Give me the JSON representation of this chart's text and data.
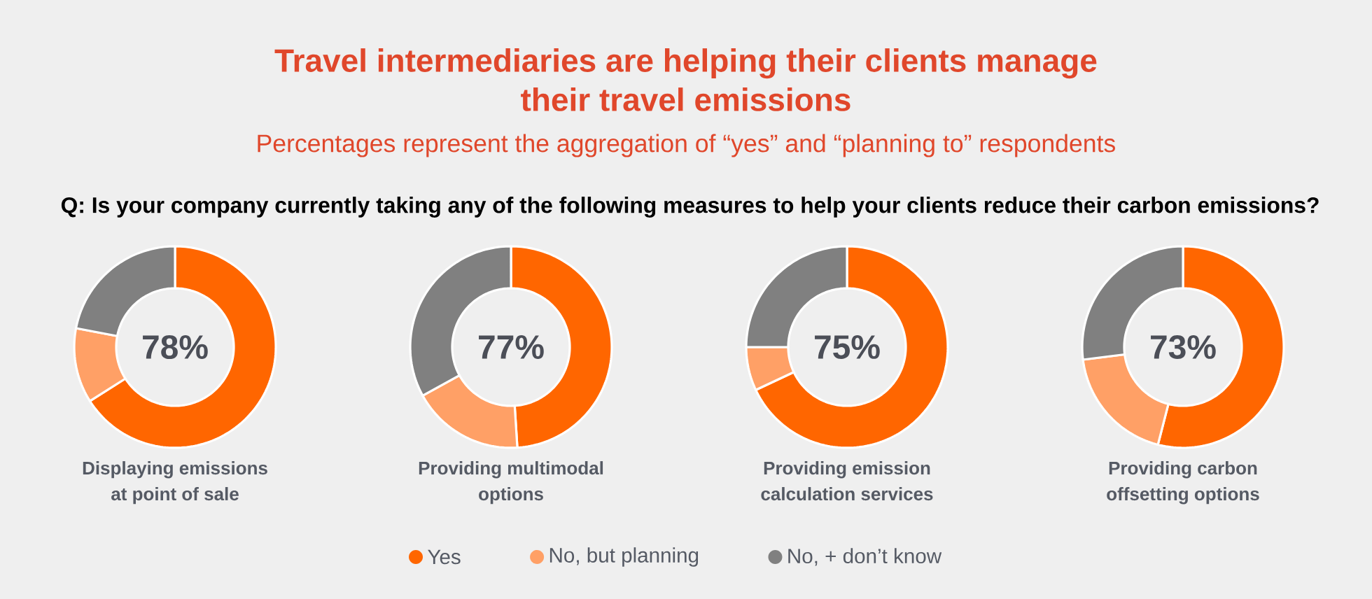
{
  "chart_data": {
    "type": "donut",
    "title": "Travel intermediaries are helping their clients manage their travel emissions",
    "subtitle": "Percentages represent the aggregation of “yes” and “planning to” respondents",
    "annotations": [
      "Q: Is your company currently taking any of the following measures to help your clients reduce their carbon emissions?",
      "78%",
      "77%",
      "75%",
      "73%"
    ],
    "categories": [
      "Yes",
      "No, but planning",
      "No, + don’t know"
    ],
    "colors": [
      "#ff6600",
      "#ffa066",
      "#808080"
    ],
    "series": [
      {
        "name": "Displaying emissions at point of sale",
        "values": [
          66,
          12,
          22
        ]
      },
      {
        "name": "Providing multimodal options",
        "values": [
          49,
          18,
          33
        ]
      },
      {
        "name": "Providing emission calculation services",
        "values": [
          68,
          7,
          25
        ]
      },
      {
        "name": "Providing carbon offsetting options",
        "values": [
          54,
          19,
          27
        ]
      }
    ],
    "legend": "bottom"
  }
}
